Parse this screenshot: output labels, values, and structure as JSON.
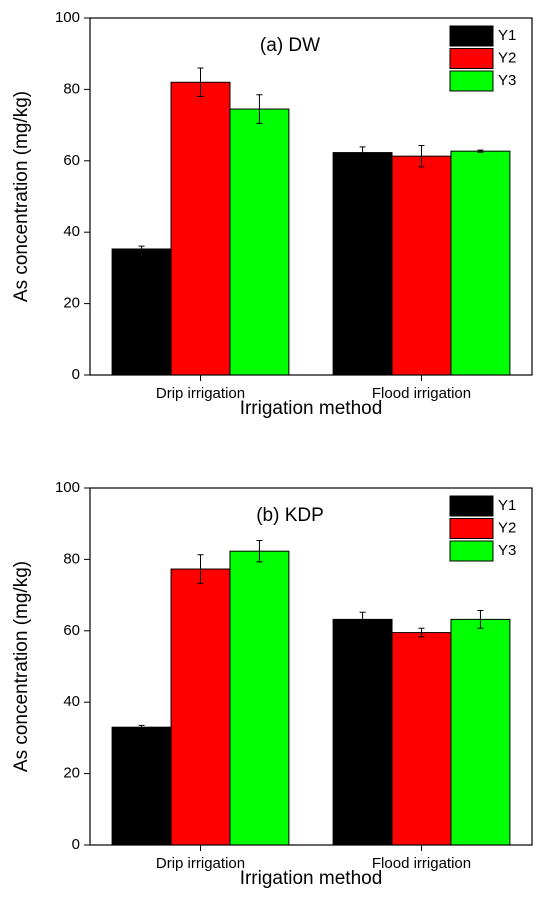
{
  "chart_data": [
    {
      "type": "bar",
      "title": "(a) DW",
      "x_label": "Irrigation method",
      "y_label": "As concentration (mg/kg)",
      "categories": [
        "Drip irrigation",
        "Flood irrigation"
      ],
      "series": [
        {
          "name": "Y1",
          "color": "#000000",
          "values": [
            35.3,
            62.3
          ],
          "errors": [
            0.8,
            1.6
          ]
        },
        {
          "name": "Y2",
          "color": "#ff0000",
          "values": [
            82,
            61.3
          ],
          "errors": [
            4,
            3
          ]
        },
        {
          "name": "Y3",
          "color": "#00ff00",
          "values": [
            74.5,
            62.7
          ],
          "errors": [
            4,
            0.3
          ]
        }
      ],
      "ylim": [
        0,
        100
      ],
      "yticks": [
        0,
        20,
        40,
        60,
        80,
        100
      ],
      "legend": "upper right"
    },
    {
      "type": "bar",
      "title": "(b) KDP",
      "x_label": "Irrigation method",
      "y_label": "As concentration (mg/kg)",
      "categories": [
        "Drip irrigation",
        "Flood irrigation"
      ],
      "series": [
        {
          "name": "Y1",
          "color": "#000000",
          "values": [
            33,
            63.2
          ],
          "errors": [
            0.5,
            2
          ]
        },
        {
          "name": "Y2",
          "color": "#ff0000",
          "values": [
            77.3,
            59.5
          ],
          "errors": [
            4,
            1.2
          ]
        },
        {
          "name": "Y3",
          "color": "#00ff00",
          "values": [
            82.3,
            63.2
          ],
          "errors": [
            3,
            2.5
          ]
        }
      ],
      "ylim": [
        0,
        100
      ],
      "yticks": [
        0,
        20,
        40,
        60,
        80,
        100
      ],
      "legend": "upper right"
    }
  ]
}
